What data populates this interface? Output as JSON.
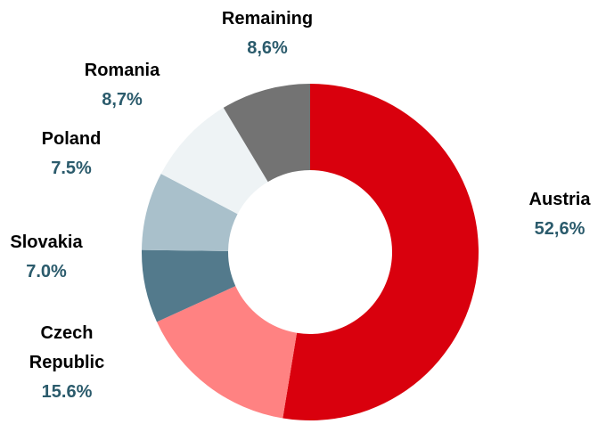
{
  "chart_data": {
    "type": "pie",
    "categories": [
      "Austria",
      "Czech Republic",
      "Slovakia",
      "Poland",
      "Romania",
      "Remaining"
    ],
    "values": [
      52.6,
      15.6,
      7.0,
      7.5,
      8.7,
      8.6
    ],
    "value_labels": [
      "52,6%",
      "15.6%",
      "7.0%",
      "7.5%",
      "8,7%",
      "8,6%"
    ],
    "colors": [
      "#d9000d",
      "#ff8282",
      "#537a8c",
      "#a9c0cb",
      "#eef3f5",
      "#737373"
    ]
  }
}
